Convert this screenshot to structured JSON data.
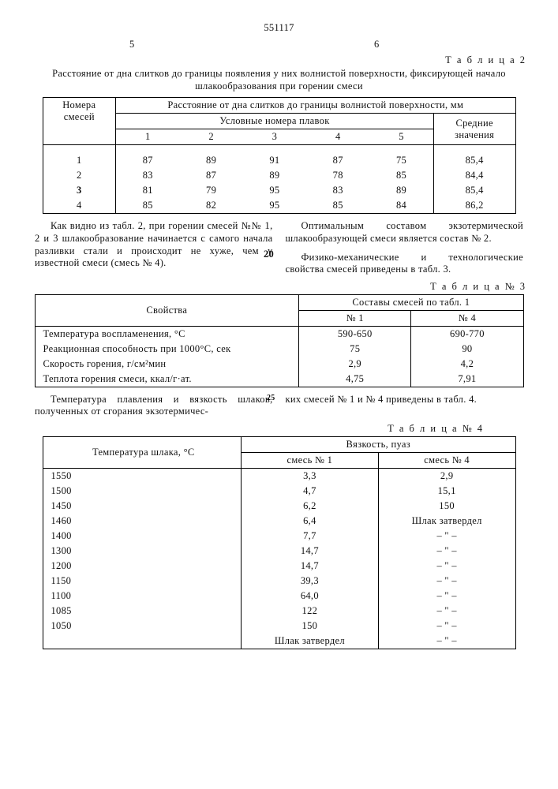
{
  "doc_number": "551117",
  "col5": "5",
  "col6": "6",
  "table2_label": "Т а б л и ц а   2",
  "table2_caption": "Расстояние от дна слитков до границы появления у них волнистой поверхности, фиксирующей начало шлакообразования при горении смеси",
  "t2": {
    "h_left": "Номера смесей",
    "h_right": "Расстояние от дна слитков до границы волнистой поверхности, мм",
    "h_sub_left": "Условные номера плавок",
    "h_sub_right": "Средние значения",
    "cols": [
      "1",
      "2",
      "3",
      "4",
      "5"
    ],
    "rows": [
      {
        "n": "1",
        "v": [
          "87",
          "89",
          "91",
          "87",
          "75"
        ],
        "avg": "85,4"
      },
      {
        "n": "2",
        "v": [
          "83",
          "87",
          "89",
          "78",
          "85"
        ],
        "avg": "84,4"
      },
      {
        "n": "3",
        "v": [
          "81",
          "79",
          "95",
          "83",
          "89"
        ],
        "avg": "85,4"
      },
      {
        "n": "4",
        "v": [
          "85",
          "82",
          "95",
          "85",
          "84"
        ],
        "avg": "86,2"
      }
    ]
  },
  "para_left1": "Как видно из табл. 2, при горении смесей №№ 1, 2 и 3 шлакообразование начинается с самого начала разливки стали и происходит не хуже, чем у известной смеси (смесь № 4).",
  "sidemark20": "20",
  "para_right1": "Оптимальным составом экзотермической шлакообразующей смеси является состав № 2.",
  "para_right2": "Физико-механические и технологические свойства смесей приведены в табл. 3.",
  "table3_label": "Т а б л и ц а   № 3",
  "t3": {
    "h_prop": "Свойства",
    "h_comp": "Составы смесей по табл. 1",
    "h_c1": "№ 1",
    "h_c2": "№ 4",
    "rows": [
      {
        "p": "Температура воспламенения, °С",
        "a": "590-650",
        "b": "690-770"
      },
      {
        "p": "Реакционная способность при 1000°С, сек",
        "a": "75",
        "b": "90"
      },
      {
        "p": "Скорость горения, г/см²мин",
        "a": "2,9",
        "b": "4,2"
      },
      {
        "p": "Теплота горения смеси, ккал/г·ат.",
        "a": "4,75",
        "b": "7,91"
      }
    ]
  },
  "para2_left": "Температура плавления и вязкость шлаков, полученных от сгорания экзотермичес-",
  "sidemark25": "25",
  "para2_right": "ких смесей № 1 и № 4 приведены в табл. 4.",
  "table4_label": "Т а б л и ц а   № 4",
  "t4": {
    "h_temp": "Температура шлака, °С",
    "h_visc": "Вязкость, пуаз",
    "h_m1": "смесь № 1",
    "h_m2": "смесь № 4",
    "rows": [
      {
        "t": "1550",
        "a": "3,3",
        "b": "2,9"
      },
      {
        "t": "1500",
        "a": "4,7",
        "b": "15,1"
      },
      {
        "t": "1450",
        "a": "6,2",
        "b": "150"
      },
      {
        "t": "1460",
        "a": "6,4",
        "b": "Шлак затвердел"
      },
      {
        "t": "1400",
        "a": "7,7",
        "b": "– \" –"
      },
      {
        "t": "1300",
        "a": "14,7",
        "b": "– \" –"
      },
      {
        "t": "1200",
        "a": "14,7",
        "b": "– \" –"
      },
      {
        "t": "1150",
        "a": "39,3",
        "b": "– \" –"
      },
      {
        "t": "1100",
        "a": "64,0",
        "b": "– \" –"
      },
      {
        "t": "1085",
        "a": "122",
        "b": "– \" –"
      },
      {
        "t": "1050",
        "a": "150",
        "b": "– \" –"
      },
      {
        "t": "",
        "a": "Шлак затвердел",
        "b": "– \" –"
      }
    ]
  }
}
